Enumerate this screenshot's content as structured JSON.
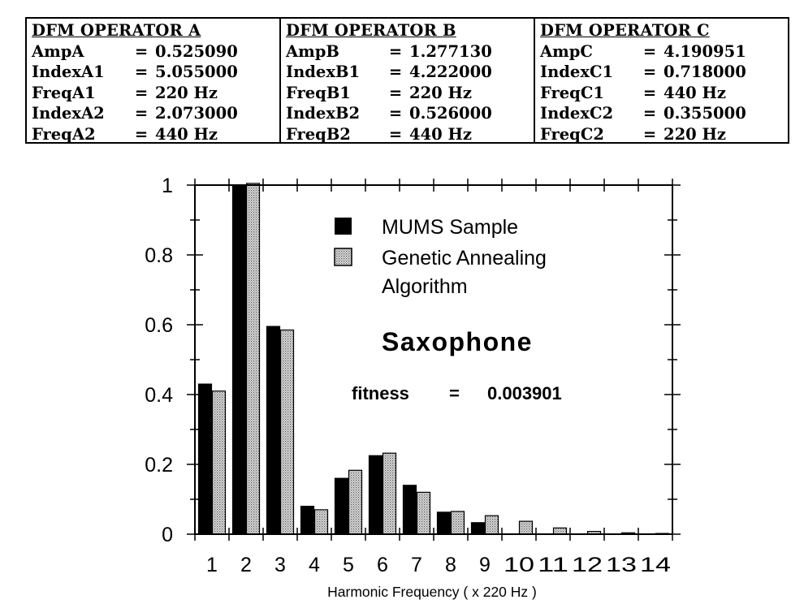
{
  "operators": [
    {
      "title": "DFM OPERATOR A",
      "rows": [
        {
          "name": "AmpA",
          "eq": "=",
          "value": "0.525090"
        },
        {
          "name": "IndexA1",
          "eq": "=",
          "value": "5.055000"
        },
        {
          "name": "FreqA1",
          "eq": "=",
          "value": "220 Hz"
        },
        {
          "name": "IndexA2",
          "eq": "=",
          "value": "2.073000"
        },
        {
          "name": "FreqA2",
          "eq": "=",
          "value": "440 Hz"
        }
      ]
    },
    {
      "title": "DFM OPERATOR B",
      "rows": [
        {
          "name": "AmpB",
          "eq": "=",
          "value": "1.277130"
        },
        {
          "name": "IndexB1",
          "eq": "=",
          "value": "4.222000"
        },
        {
          "name": "FreqB1",
          "eq": "=",
          "value": "220 Hz"
        },
        {
          "name": "IndexB2",
          "eq": "=",
          "value": "0.526000"
        },
        {
          "name": "FreqB2",
          "eq": "=",
          "value": "440 Hz"
        }
      ]
    },
    {
      "title": "DFM OPERATOR C",
      "rows": [
        {
          "name": "AmpC",
          "eq": "=",
          "value": "4.190951"
        },
        {
          "name": "IndexC1",
          "eq": "=",
          "value": "0.718000"
        },
        {
          "name": "FreqC1",
          "eq": "=",
          "value": "440 Hz"
        },
        {
          "name": "IndexC2",
          "eq": "=",
          "value": "0.355000"
        },
        {
          "name": "FreqC2",
          "eq": "=",
          "value": "220 Hz"
        }
      ]
    }
  ],
  "chart_data": {
    "type": "bar",
    "title": "Saxophone",
    "annotation": {
      "label": "fitness",
      "eq": "=",
      "value": "0.003901"
    },
    "xlabel": "Harmonic Frequency ( x 220 Hz )",
    "ylabel": "",
    "categories": [
      "1",
      "2",
      "3",
      "4",
      "5",
      "6",
      "7",
      "8",
      "9",
      "10",
      "11",
      "12",
      "13",
      "14"
    ],
    "series": [
      {
        "name": "MUMS Sample",
        "color": "#000000",
        "pattern": "solid",
        "values": [
          0.43,
          1.0,
          0.595,
          0.08,
          0.16,
          0.225,
          0.14,
          0.063,
          0.033,
          0.0,
          0.0,
          0.0,
          0.0,
          0.0
        ]
      },
      {
        "name": "Genetic Annealing Algorithm",
        "name_lines": [
          "Genetic Annealing",
          "Algorithm"
        ],
        "color": "#c8c8c8",
        "pattern": "dotted",
        "values": [
          0.41,
          1.005,
          0.585,
          0.07,
          0.183,
          0.232,
          0.12,
          0.065,
          0.053,
          0.037,
          0.018,
          0.008,
          0.004,
          0.002
        ]
      }
    ],
    "yticks": [
      "0",
      "0.2",
      "0.4",
      "0.6",
      "0.8",
      "1"
    ],
    "ylim": [
      0,
      1
    ],
    "legend_position": "top-right",
    "grid": false
  }
}
